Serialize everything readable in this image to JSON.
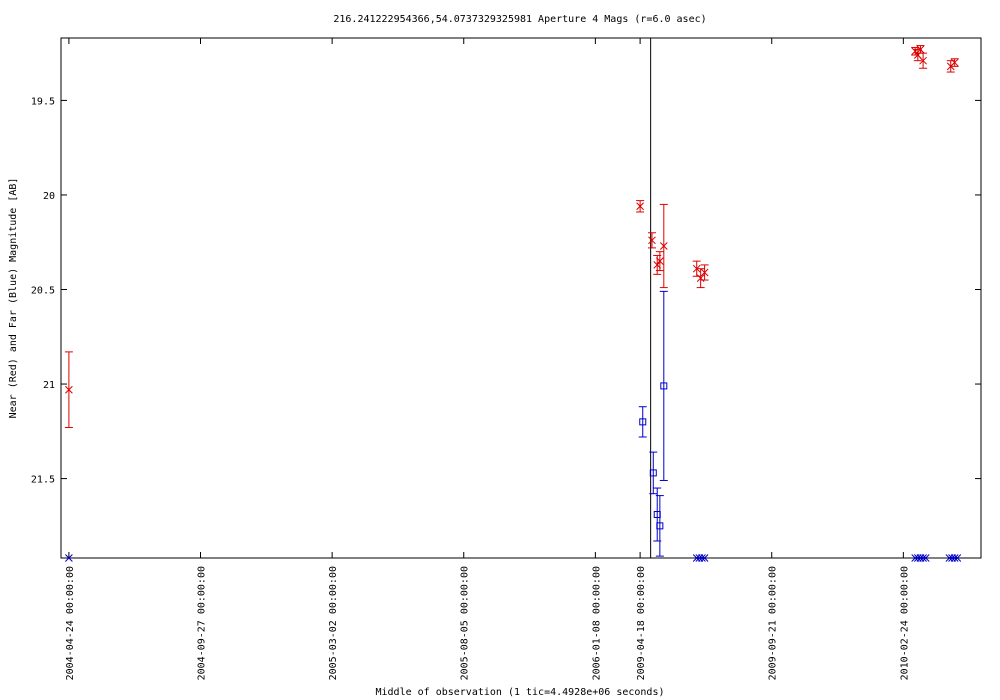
{
  "chart_data": {
    "type": "scatter",
    "title": "216.241222954366,54.0737329325981   Aperture 4 Mags (r=6.0 asec)",
    "xlabel": "Middle of observation (1 tic=4.4928e+06 seconds)",
    "ylabel": "Near (Red) and Far (Blue) Magnitude [AB]",
    "x_tick_labels": [
      "2004-04-24 00:00:00",
      "2004-09-27 00:00:00",
      "2005-03-02 00:00:00",
      "2005-08-05 00:00:00",
      "2006-01-08 00:00:00",
      "2009-04-18 00:00:00",
      "2009-09-21 00:00:00",
      "2010-02-24 00:00:00"
    ],
    "x_tick_positions": [
      0,
      1,
      2,
      3,
      4,
      4.34,
      5.34,
      6.34
    ],
    "xlim": [
      -0.06,
      6.93
    ],
    "y_tick_labels": [
      "19.5",
      "20",
      "20.5",
      "21",
      "21.5"
    ],
    "y_tick_values": [
      19.5,
      20.0,
      20.5,
      21.0,
      21.5
    ],
    "ylim": [
      19.17,
      21.92
    ],
    "y_inverted": true,
    "vertical_line_x": 4.42,
    "grid": false,
    "legend": "none",
    "colors": {
      "near": "#dd0000",
      "far": "#0000cc",
      "axes": "#000000"
    },
    "series": [
      {
        "marker": "x",
        "color": "#dd0000",
        "points": [
          {
            "x": 0.0,
            "y": 21.03,
            "err": 0.2
          },
          {
            "x": 4.34,
            "y": 20.06,
            "err": 0.03
          },
          {
            "x": 4.43,
            "y": 20.24,
            "err": 0.04
          },
          {
            "x": 4.47,
            "y": 20.37,
            "err": 0.05
          },
          {
            "x": 4.49,
            "y": 20.35,
            "err": 0.05
          },
          {
            "x": 4.52,
            "y": 20.27,
            "err": 0.22
          },
          {
            "x": 4.77,
            "y": 20.39,
            "err": 0.04
          },
          {
            "x": 4.8,
            "y": 20.44,
            "err": 0.05
          },
          {
            "x": 4.83,
            "y": 20.41,
            "err": 0.04
          },
          {
            "x": 6.43,
            "y": 19.24,
            "err": 0.02
          },
          {
            "x": 6.45,
            "y": 19.26,
            "err": 0.03
          },
          {
            "x": 6.47,
            "y": 19.23,
            "err": 0.02
          },
          {
            "x": 6.49,
            "y": 19.29,
            "err": 0.04
          },
          {
            "x": 6.7,
            "y": 19.32,
            "err": 0.03
          },
          {
            "x": 6.73,
            "y": 19.3,
            "err": 0.02
          }
        ]
      },
      {
        "marker": "square",
        "color": "#0000cc",
        "points": [
          {
            "x": 4.36,
            "y": 21.2,
            "err": 0.08
          },
          {
            "x": 4.44,
            "y": 21.47,
            "err": 0.11
          },
          {
            "x": 4.47,
            "y": 21.69,
            "err": 0.14
          },
          {
            "x": 4.49,
            "y": 21.75,
            "err": 0.16
          },
          {
            "x": 4.52,
            "y": 21.01,
            "err": 0.5
          }
        ]
      },
      {
        "marker": "x",
        "color": "#0000cc",
        "points": [
          {
            "x": 0.0,
            "y": 21.92
          },
          {
            "x": 4.77,
            "y": 21.92
          },
          {
            "x": 4.79,
            "y": 21.92
          },
          {
            "x": 4.81,
            "y": 21.92
          },
          {
            "x": 4.83,
            "y": 21.92
          },
          {
            "x": 6.43,
            "y": 21.92
          },
          {
            "x": 6.45,
            "y": 21.92
          },
          {
            "x": 6.47,
            "y": 21.92
          },
          {
            "x": 6.49,
            "y": 21.92
          },
          {
            "x": 6.51,
            "y": 21.92
          },
          {
            "x": 6.69,
            "y": 21.92
          },
          {
            "x": 6.71,
            "y": 21.92
          },
          {
            "x": 6.73,
            "y": 21.92
          },
          {
            "x": 6.75,
            "y": 21.92
          }
        ]
      }
    ]
  }
}
